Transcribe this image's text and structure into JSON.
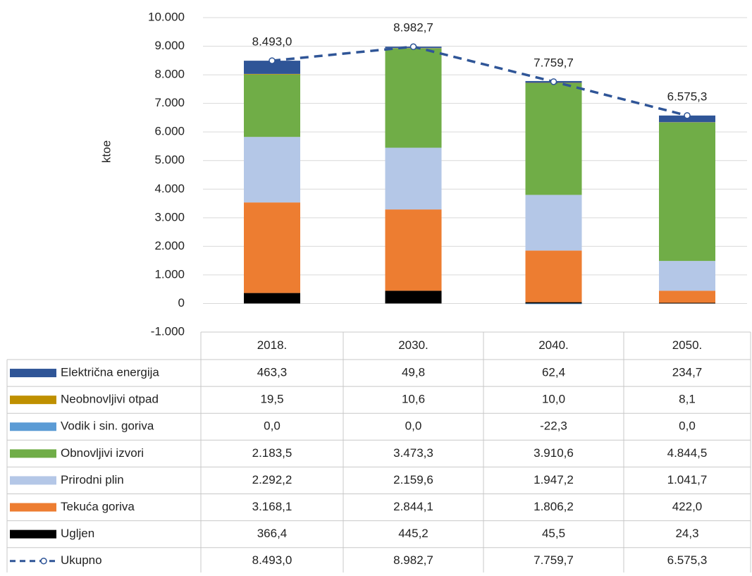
{
  "chart_data": {
    "type": "bar",
    "stacked": true,
    "y_label": "ktoe",
    "categories": [
      "2018.",
      "2030.",
      "2040.",
      "2050."
    ],
    "ylim": [
      -1000,
      10000
    ],
    "yticks": [
      {
        "value": -1000,
        "label": "-1.000"
      },
      0,
      {
        "value": 1000,
        "label": "1.000"
      },
      {
        "value": 2000,
        "label": "2.000"
      },
      {
        "value": 3000,
        "label": "3.000"
      },
      {
        "value": 4000,
        "label": "4.000"
      },
      {
        "value": 5000,
        "label": "5.000"
      },
      {
        "value": 6000,
        "label": "6.000"
      },
      {
        "value": 7000,
        "label": "7.000"
      },
      {
        "value": 8000,
        "label": "8.000"
      },
      {
        "value": 9000,
        "label": "9.000"
      },
      {
        "value": 10000,
        "label": "10.000"
      }
    ],
    "grid": true,
    "series": [
      {
        "name": "Električna energija",
        "color": "#2f5597",
        "values": [
          463.3,
          49.8,
          62.4,
          234.7
        ],
        "value_labels": [
          "463,3",
          "49,8",
          "62,4",
          "234,7"
        ]
      },
      {
        "name": "Neobnovljivi otpad",
        "color": "#bf9000",
        "values": [
          19.5,
          10.6,
          10.0,
          8.1
        ],
        "value_labels": [
          "19,5",
          "10,6",
          "10,0",
          "8,1"
        ]
      },
      {
        "name": "Vodik i  sin. goriva",
        "color": "#5b9bd5",
        "values": [
          0.0,
          0.0,
          -22.3,
          0.0
        ],
        "value_labels": [
          "0,0",
          "0,0",
          "-22,3",
          "0,0"
        ]
      },
      {
        "name": "Obnovljivi izvori",
        "color": "#70ad47",
        "values": [
          2183.5,
          3473.3,
          3910.6,
          4844.5
        ],
        "value_labels": [
          "2.183,5",
          "3.473,3",
          "3.910,6",
          "4.844,5"
        ]
      },
      {
        "name": "Prirodni plin",
        "color": "#b4c7e7",
        "values": [
          2292.2,
          2159.6,
          1947.2,
          1041.7
        ],
        "value_labels": [
          "2.292,2",
          "2.159,6",
          "1.947,2",
          "1.041,7"
        ]
      },
      {
        "name": "Tekuća goriva",
        "color": "#ed7d31",
        "values": [
          3168.1,
          2844.1,
          1806.2,
          422.0
        ],
        "value_labels": [
          "3.168,1",
          "2.844,1",
          "1.806,2",
          "422,0"
        ]
      },
      {
        "name": "Ugljen",
        "color": "#000000",
        "values": [
          366.4,
          445.2,
          45.5,
          24.3
        ],
        "value_labels": [
          "366,4",
          "445,2",
          "45,5",
          "24,3"
        ]
      }
    ],
    "line_series": {
      "name": "Ukupno",
      "color": "#2f5597",
      "values": [
        8493.0,
        8982.7,
        7759.7,
        6575.3
      ],
      "value_labels": [
        "8.493,0",
        "8.982,7",
        "7.759,7",
        "6.575,3"
      ]
    }
  }
}
